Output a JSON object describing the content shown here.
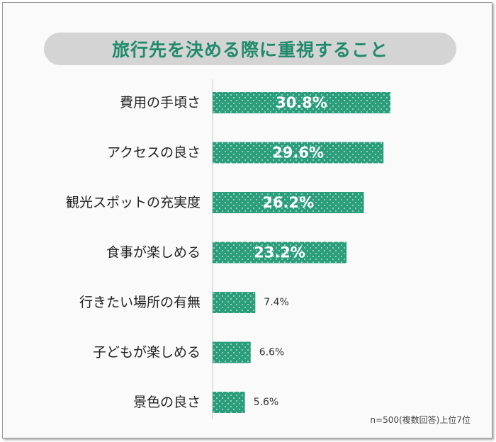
{
  "title": "旅行先を決める際に重視すること",
  "footnote": "n=500(複数回答)上位7位",
  "colors": {
    "bar": "#2a9d7b",
    "title": "#1f8a6c",
    "label": "#222222",
    "value_outside": "#333333"
  },
  "chart_data": {
    "type": "bar",
    "orientation": "horizontal",
    "unit": "%",
    "categories": [
      "費用の手頃さ",
      "アクセスの良さ",
      "観光スポットの充実度",
      "食事が楽しめる",
      "行きたい場所の有無",
      "子どもが楽しめる",
      "景色の良さ"
    ],
    "values": [
      30.8,
      29.6,
      26.2,
      23.2,
      7.4,
      6.6,
      5.6
    ],
    "value_labels": [
      "30.8%",
      "29.6%",
      "26.2%",
      "23.2%",
      "7.4%",
      "6.6%",
      "5.6%"
    ],
    "title": "旅行先を決める際に重視すること",
    "xlabel": "",
    "ylabel": "",
    "grid": false,
    "legend": "none"
  }
}
